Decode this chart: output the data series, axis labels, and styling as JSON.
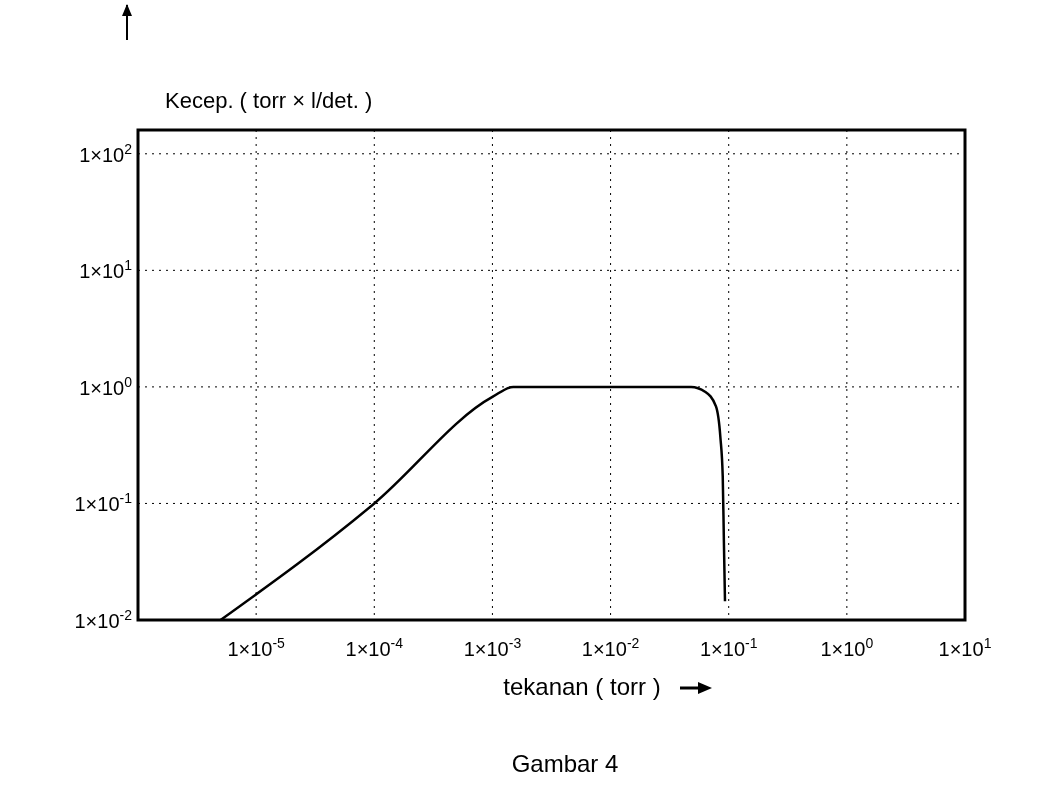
{
  "chart_data": {
    "type": "line",
    "xlabel": "tekanan ( torr )",
    "ylabel": "Kecep. ( torr × l/det. )",
    "log": "xy",
    "grid": true,
    "line_style": "solid",
    "xlim": [
      1e-06,
      10
    ],
    "ylim": [
      0.01,
      160
    ],
    "xticks": [
      {
        "value": 1e-06,
        "label": null
      },
      {
        "value": 1e-05,
        "label": "1×10$^{-5}$"
      },
      {
        "value": 0.0001,
        "label": "1×10$^{-4}$"
      },
      {
        "value": 0.001,
        "label": "1×10$^{-3}$"
      },
      {
        "value": 0.01,
        "label": "1×10$^{-2}$"
      },
      {
        "value": 0.1,
        "label": "1×10$^{-1}$"
      },
      {
        "value": 1,
        "label": "1×10$^{0}$"
      },
      {
        "value": 10,
        "label": "1×10$^{1}$"
      }
    ],
    "yticks": [
      {
        "value": 0.01,
        "label": "1×10$^{-2}$"
      },
      {
        "value": 0.1,
        "label": "1×10$^{-1}$"
      },
      {
        "value": 1,
        "label": "1×10$^{0}$"
      },
      {
        "value": 10,
        "label": "1×10$^{1}$"
      },
      {
        "value": 100,
        "label": "1×10$^{2}$"
      }
    ],
    "x": [
      5e-06,
      0.0001,
      0.001,
      0.0015,
      0.048,
      0.063,
      0.078,
      0.085,
      0.089,
      0.091,
      0.093
    ],
    "series": [
      {
        "color": "#000000",
        "values": [
          0.01,
          0.1,
          0.82,
          1,
          1,
          0.91,
          0.68,
          0.37,
          0.17,
          0.048,
          0.0145
        ]
      }
    ],
    "annotations": [
      "Gambar 4"
    ]
  }
}
